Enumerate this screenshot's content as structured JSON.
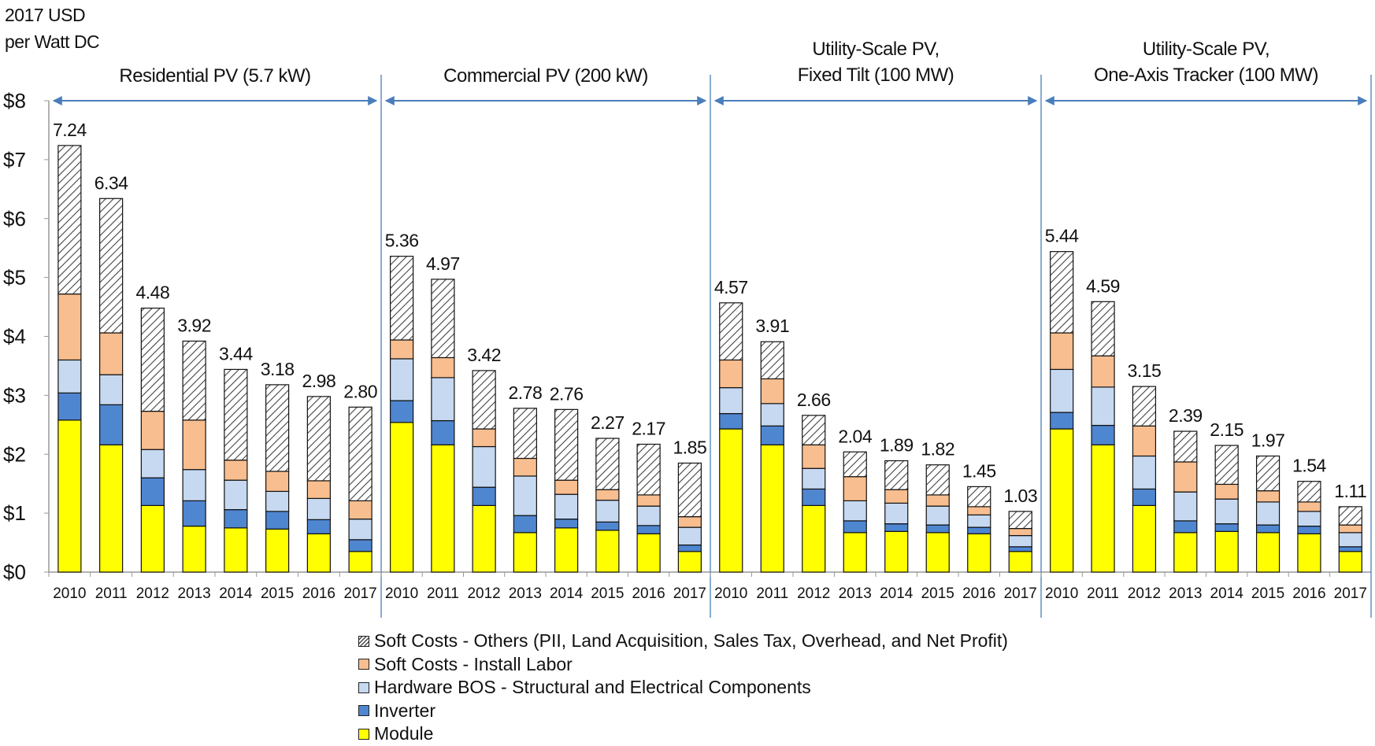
{
  "chart_data": {
    "type": "bar",
    "stacked": true,
    "ylabel": [
      "2017 USD",
      "per Watt DC"
    ],
    "ylim": [
      0,
      8
    ],
    "yticks": [
      "$0",
      "$1",
      "$2",
      "$3",
      "$4",
      "$5",
      "$6",
      "$7",
      "$8"
    ],
    "grid": false,
    "legend_position": "bottom",
    "categories": [
      "2010",
      "2011",
      "2012",
      "2013",
      "2014",
      "2015",
      "2016",
      "2017"
    ],
    "series_order": [
      "Module",
      "Inverter",
      "Hardware BOS - Structural and Electrical Components",
      "Soft Costs - Install Labor",
      "Soft Costs - Others (PII, Land Acquisition, Sales Tax, Overhead, and Net Profit)"
    ],
    "legend_order": [
      "Soft Costs - Others (PII, Land Acquisition, Sales Tax, Overhead, and Net Profit)",
      "Soft Costs - Install Labor",
      "Hardware BOS - Structural and Electrical Components",
      "Inverter",
      "Module"
    ],
    "colors": {
      "Module": "#ffff00",
      "Inverter": "#4f86d0",
      "Hardware BOS - Structural and Electrical Components": "#c6d9f1",
      "Soft Costs - Install Labor": "#f9be8f",
      "Soft Costs - Others (PII, Land Acquisition, Sales Tax, Overhead, and Net Profit)": "hatch"
    },
    "accent_color": "#4a7ebb",
    "groups": [
      {
        "title": [
          "Residential PV (5.7 kW)"
        ],
        "totals": [
          "7.24",
          "6.34",
          "4.48",
          "3.92",
          "3.44",
          "3.18",
          "2.98",
          "2.80"
        ],
        "series": [
          {
            "name": "Module",
            "values": [
              2.58,
              2.16,
              1.13,
              0.78,
              0.75,
              0.73,
              0.65,
              0.35
            ]
          },
          {
            "name": "Inverter",
            "values": [
              0.46,
              0.68,
              0.47,
              0.43,
              0.31,
              0.3,
              0.24,
              0.2
            ]
          },
          {
            "name": "Hardware BOS - Structural and Electrical Components",
            "values": [
              0.56,
              0.51,
              0.48,
              0.53,
              0.5,
              0.34,
              0.36,
              0.35
            ]
          },
          {
            "name": "Soft Costs - Install Labor",
            "values": [
              1.12,
              0.71,
              0.65,
              0.84,
              0.34,
              0.34,
              0.3,
              0.31
            ]
          },
          {
            "name": "Soft Costs - Others (PII, Land Acquisition, Sales Tax, Overhead, and Net Profit)",
            "values": [
              2.52,
              2.28,
              1.75,
              1.34,
              1.54,
              1.47,
              1.43,
              1.59
            ]
          }
        ]
      },
      {
        "title": [
          "Commercial PV (200 kW)"
        ],
        "totals": [
          "5.36",
          "4.97",
          "3.42",
          "2.78",
          "2.76",
          "2.27",
          "2.17",
          "1.85"
        ],
        "series": [
          {
            "name": "Module",
            "values": [
              2.54,
              2.16,
              1.13,
              0.67,
              0.75,
              0.71,
              0.65,
              0.35
            ]
          },
          {
            "name": "Inverter",
            "values": [
              0.37,
              0.41,
              0.31,
              0.29,
              0.15,
              0.14,
              0.14,
              0.11
            ]
          },
          {
            "name": "Hardware BOS - Structural and Electrical Components",
            "values": [
              0.71,
              0.73,
              0.69,
              0.67,
              0.42,
              0.37,
              0.33,
              0.3
            ]
          },
          {
            "name": "Soft Costs - Install Labor",
            "values": [
              0.32,
              0.34,
              0.3,
              0.3,
              0.24,
              0.18,
              0.19,
              0.18
            ]
          },
          {
            "name": "Soft Costs - Others (PII, Land Acquisition, Sales Tax, Overhead, and Net Profit)",
            "values": [
              1.42,
              1.33,
              0.99,
              0.85,
              1.2,
              0.87,
              0.86,
              0.91
            ]
          }
        ]
      },
      {
        "title": [
          "Utility-Scale PV,",
          "Fixed Tilt (100 MW)"
        ],
        "totals": [
          "4.57",
          "3.91",
          "2.66",
          "2.04",
          "1.89",
          "1.82",
          "1.45",
          "1.03"
        ],
        "series": [
          {
            "name": "Module",
            "values": [
              2.43,
              2.16,
              1.13,
              0.67,
              0.69,
              0.67,
              0.65,
              0.35
            ]
          },
          {
            "name": "Inverter",
            "values": [
              0.26,
              0.32,
              0.28,
              0.2,
              0.13,
              0.13,
              0.11,
              0.08
            ]
          },
          {
            "name": "Hardware BOS - Structural and Electrical Components",
            "values": [
              0.44,
              0.38,
              0.35,
              0.34,
              0.35,
              0.32,
              0.21,
              0.19
            ]
          },
          {
            "name": "Soft Costs - Install Labor",
            "values": [
              0.47,
              0.42,
              0.4,
              0.41,
              0.23,
              0.19,
              0.14,
              0.12
            ]
          },
          {
            "name": "Soft Costs - Others (PII, Land Acquisition, Sales Tax, Overhead, and Net Profit)",
            "values": [
              0.97,
              0.63,
              0.5,
              0.42,
              0.49,
              0.51,
              0.34,
              0.29
            ]
          }
        ]
      },
      {
        "title": [
          "Utility-Scale PV,",
          "One-Axis Tracker (100 MW)"
        ],
        "totals": [
          "5.44",
          "4.59",
          "3.15",
          "2.39",
          "2.15",
          "1.97",
          "1.54",
          "1.11"
        ],
        "series": [
          {
            "name": "Module",
            "values": [
              2.43,
              2.16,
              1.13,
              0.67,
              0.69,
              0.67,
              0.65,
              0.35
            ]
          },
          {
            "name": "Inverter",
            "values": [
              0.28,
              0.33,
              0.28,
              0.2,
              0.13,
              0.13,
              0.13,
              0.08
            ]
          },
          {
            "name": "Hardware BOS - Structural and Electrical Components",
            "values": [
              0.73,
              0.65,
              0.56,
              0.49,
              0.42,
              0.39,
              0.25,
              0.24
            ]
          },
          {
            "name": "Soft Costs - Install Labor",
            "values": [
              0.62,
              0.53,
              0.51,
              0.51,
              0.25,
              0.19,
              0.16,
              0.13
            ]
          },
          {
            "name": "Soft Costs - Others (PII, Land Acquisition, Sales Tax, Overhead, and Net Profit)",
            "values": [
              1.38,
              0.92,
              0.67,
              0.52,
              0.66,
              0.59,
              0.35,
              0.31
            ]
          }
        ]
      }
    ]
  }
}
